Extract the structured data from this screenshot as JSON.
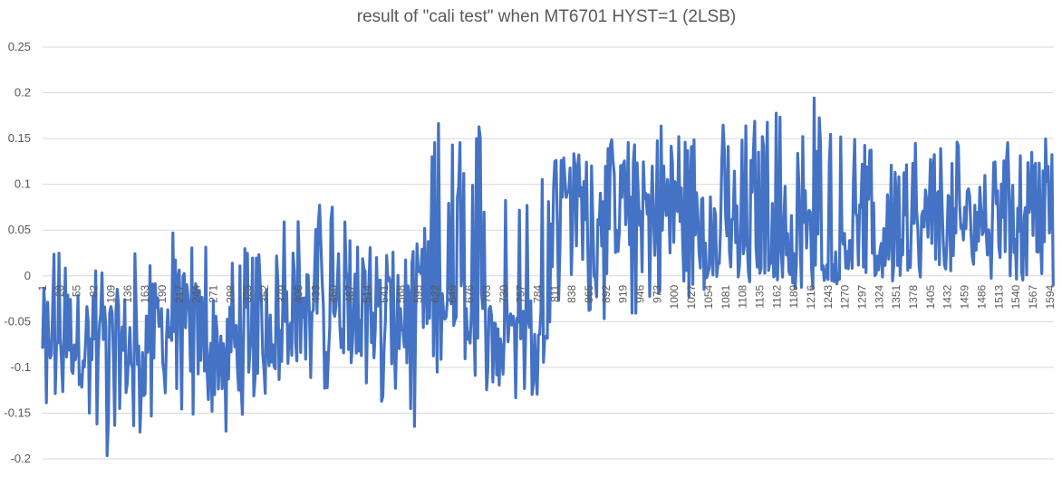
{
  "chart_data": {
    "type": "line",
    "title": "result of \"cali test\" when MT6701 HYST=1 (2LSB)",
    "xlabel": "",
    "ylabel": "",
    "ylim": [
      -0.2,
      0.25
    ],
    "ytick_values": [
      -0.2,
      -0.15,
      -0.1,
      -0.05,
      0,
      0.05,
      0.1,
      0.15,
      0.2,
      0.25
    ],
    "ytick_labels": [
      "-0.2",
      "-0.15",
      "-0.1",
      "-0.05",
      "0",
      "0.05",
      "0.1",
      "0.15",
      "0.2",
      "0.25"
    ],
    "x_range": [
      1,
      1600
    ],
    "x_tick_labels": [
      "1",
      "28",
      "55",
      "82",
      "109",
      "136",
      "163",
      "190",
      "217",
      "244",
      "271",
      "298",
      "325",
      "352",
      "379",
      "406",
      "433",
      "460",
      "487",
      "514",
      "541",
      "568",
      "595",
      "622",
      "649",
      "676",
      "703",
      "730",
      "757",
      "784",
      "811",
      "838",
      "865",
      "892",
      "919",
      "946",
      "973",
      "1000",
      "1027",
      "1054",
      "1081",
      "1108",
      "1135",
      "1162",
      "1189",
      "1216",
      "1243",
      "1270",
      "1297",
      "1324",
      "1351",
      "1378",
      "1405",
      "1432",
      "1459",
      "1486",
      "1513",
      "1540",
      "1567",
      "1594"
    ],
    "x_tick_values": [
      1,
      28,
      55,
      82,
      109,
      136,
      163,
      190,
      217,
      244,
      271,
      298,
      325,
      352,
      379,
      406,
      433,
      460,
      487,
      514,
      541,
      568,
      595,
      622,
      649,
      676,
      703,
      730,
      757,
      784,
      811,
      838,
      865,
      892,
      919,
      946,
      973,
      1000,
      1027,
      1054,
      1081,
      1108,
      1135,
      1162,
      1189,
      1216,
      1243,
      1270,
      1297,
      1324,
      1351,
      1378,
      1405,
      1432,
      1459,
      1486,
      1513,
      1540,
      1567,
      1594
    ],
    "grid": true,
    "legend": "none",
    "series": [
      {
        "color": "#4472C4",
        "x": [
          1,
          21,
          41,
          61,
          81,
          101,
          121,
          141,
          161,
          181,
          201,
          221,
          241,
          261,
          281,
          301,
          321,
          341,
          361,
          381,
          401,
          421,
          441,
          461,
          481,
          501,
          521,
          541,
          561,
          581,
          601,
          621,
          641,
          661,
          681,
          701,
          721,
          741,
          761,
          781,
          801,
          809,
          821,
          841,
          861,
          881,
          901,
          921,
          941,
          961,
          981,
          1001,
          1021,
          1041,
          1061,
          1081,
          1101,
          1121,
          1141,
          1161,
          1181,
          1201,
          1221,
          1241,
          1261,
          1281,
          1301,
          1321,
          1341,
          1361,
          1381,
          1401,
          1421,
          1441,
          1461,
          1481,
          1501,
          1521,
          1541,
          1561,
          1581,
          1600
        ],
        "y_mean": [
          -0.06,
          -0.06,
          -0.06,
          -0.07,
          -0.07,
          -0.08,
          -0.08,
          -0.08,
          -0.07,
          -0.06,
          -0.05,
          -0.05,
          -0.06,
          -0.07,
          -0.08,
          -0.08,
          -0.07,
          -0.06,
          -0.05,
          -0.05,
          -0.04,
          -0.04,
          -0.03,
          -0.03,
          -0.03,
          -0.03,
          -0.04,
          -0.04,
          -0.05,
          -0.05,
          -0.03,
          -0.03,
          -0.03,
          -0.04,
          -0.05,
          -0.07,
          -0.08,
          -0.08,
          -0.08,
          -0.07,
          -0.06,
          0.08,
          0.08,
          0.07,
          0.07,
          0.08,
          0.08,
          0.07,
          0.07,
          0.07,
          0.08,
          0.07,
          0.06,
          0.05,
          0.04,
          0.04,
          0.04,
          0.05,
          0.05,
          0.05,
          0.05,
          0.04,
          0.04,
          0.04,
          0.04,
          0.04,
          0.04,
          0.04,
          0.05,
          0.05,
          0.05,
          0.06,
          0.06,
          0.06,
          0.06,
          0.06,
          0.06,
          0.07,
          0.08,
          0.09,
          0.08,
          0.08
        ],
        "y_max": [
          0.03,
          0.03,
          0.03,
          0.02,
          0.02,
          0.03,
          0.04,
          0.04,
          0.04,
          0.05,
          0.05,
          0.05,
          0.04,
          0.04,
          0.03,
          0.03,
          0.04,
          0.05,
          0.06,
          0.08,
          0.07,
          0.07,
          0.08,
          0.12,
          0.08,
          0.08,
          0.06,
          0.04,
          0.02,
          0.03,
          0.04,
          0.18,
          0.16,
          0.17,
          0.18,
          0.18,
          0.18,
          0.18,
          0.17,
          0.16,
          0.15,
          0.14,
          0.15,
          0.14,
          0.15,
          0.15,
          0.15,
          0.15,
          0.16,
          0.17,
          0.17,
          0.17,
          0.17,
          0.17,
          0.16,
          0.17,
          0.17,
          0.18,
          0.18,
          0.19,
          0.2,
          0.21,
          0.2,
          0.17,
          0.16,
          0.15,
          0.15,
          0.15,
          0.15,
          0.15,
          0.15,
          0.15,
          0.15,
          0.15,
          0.15,
          0.15,
          0.15,
          0.15,
          0.15,
          0.15,
          0.15,
          0.15
        ],
        "y_min": [
          -0.14,
          -0.15,
          -0.16,
          -0.17,
          -0.17,
          -0.2,
          -0.2,
          -0.19,
          -0.17,
          -0.15,
          -0.15,
          -0.15,
          -0.17,
          -0.18,
          -0.18,
          -0.16,
          -0.15,
          -0.14,
          -0.13,
          -0.12,
          -0.12,
          -0.13,
          -0.13,
          -0.13,
          -0.12,
          -0.12,
          -0.13,
          -0.15,
          -0.17,
          -0.19,
          -0.18,
          -0.14,
          -0.03,
          -0.03,
          -0.03,
          -0.03,
          -0.04,
          -0.04,
          -0.05,
          -0.06,
          -0.07,
          -0.07,
          -0.06,
          -0.05,
          -0.05,
          -0.05,
          -0.06,
          -0.06,
          -0.05,
          -0.04,
          -0.04,
          -0.04,
          -0.03,
          -0.02,
          -0.01,
          -0.01,
          -0.01,
          -0.01,
          -0.01,
          -0.01,
          -0.01,
          -0.01,
          -0.01,
          -0.01,
          -0.01,
          -0.01,
          -0.01,
          -0.01,
          -0.01,
          -0.01,
          -0.01,
          -0.01,
          -0.01,
          -0.01,
          -0.01,
          -0.01,
          -0.01,
          -0.01,
          -0.01,
          -0.01,
          -0.01,
          -0.01
        ]
      }
    ]
  }
}
